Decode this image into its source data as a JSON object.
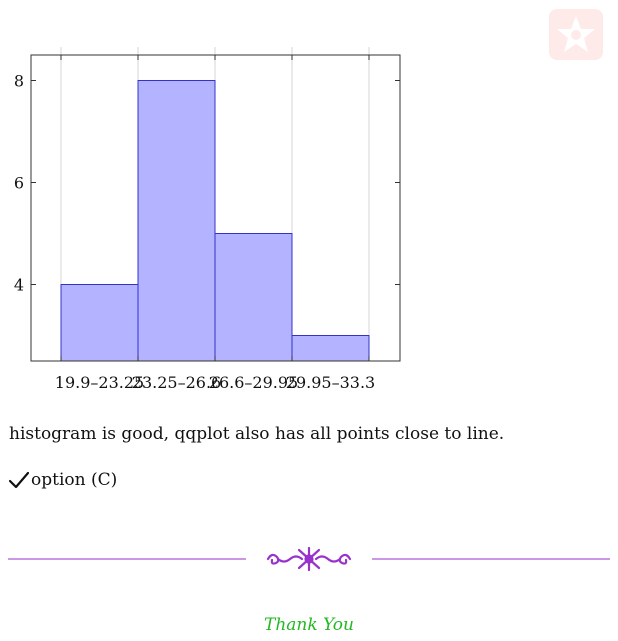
{
  "chart_data": {
    "type": "bar",
    "categories": [
      "19.9–23.25",
      "23.25–26.6",
      "26.6–29.95",
      "29.95–33.3"
    ],
    "values": [
      4,
      8,
      5,
      3
    ],
    "title": "",
    "xlabel": "",
    "ylabel": "",
    "ylim": [
      2.5,
      8.5
    ],
    "yticks": [
      4,
      6,
      8
    ],
    "grid": "vertical",
    "colors": {
      "fill": "#b3b3ff",
      "stroke": "#3333cc"
    }
  },
  "remark": "histogram is good, qqplot also has all points close to line.",
  "answer": {
    "icon": "checkmark-icon",
    "label": "option (C)"
  },
  "divider": {
    "icon": "ornament-icon",
    "color": "#9932cc"
  },
  "logo": {
    "icon": "star-badge-icon",
    "color": "#ffe8e8"
  },
  "footer": {
    "thanks": "Thank You"
  }
}
